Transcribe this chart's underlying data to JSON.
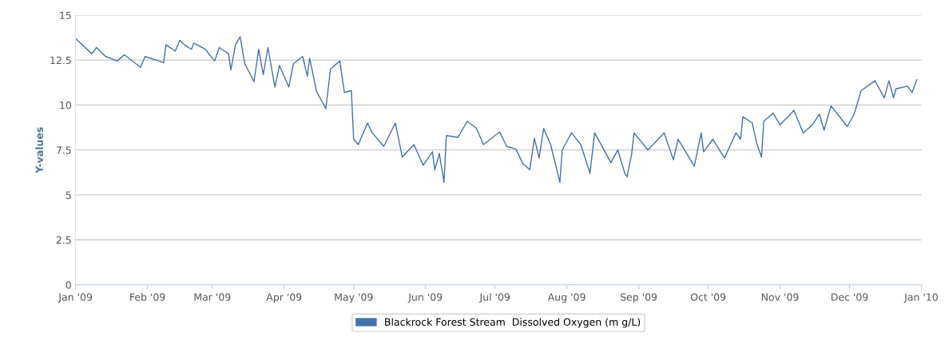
{
  "chart_data": {
    "type": "line",
    "ylabel": "Y-values",
    "xlim": [
      "2009-01-01",
      "2010-01-01"
    ],
    "xticks": [
      {
        "value": "2009-01-01",
        "label": "Jan '09"
      },
      {
        "value": "2009-02-01",
        "label": "Feb '09"
      },
      {
        "value": "2009-03-01",
        "label": "Mar '09"
      },
      {
        "value": "2009-04-01",
        "label": "Apr '09"
      },
      {
        "value": "2009-05-01",
        "label": "May '09"
      },
      {
        "value": "2009-06-01",
        "label": "Jun '09"
      },
      {
        "value": "2009-07-01",
        "label": "Jul '09"
      },
      {
        "value": "2009-08-01",
        "label": "Aug '09"
      },
      {
        "value": "2009-09-01",
        "label": "Sep '09"
      },
      {
        "value": "2009-10-01",
        "label": "Oct '09"
      },
      {
        "value": "2009-11-01",
        "label": "Nov '09"
      },
      {
        "value": "2009-12-01",
        "label": "Dec '09"
      },
      {
        "value": "2010-01-01",
        "label": "Jan '10"
      }
    ],
    "ylim": [
      0,
      15
    ],
    "yticks": [
      0,
      2.5,
      5,
      7.5,
      10,
      12.5,
      15
    ],
    "grid": "y",
    "legend": "bottom",
    "x": [
      "2009-01-01",
      "2009-01-08",
      "2009-01-10",
      "2009-01-14",
      "2009-01-19",
      "2009-01-22",
      "2009-01-29",
      "2009-01-31",
      "2009-02-06",
      "2009-02-08",
      "2009-02-09",
      "2009-02-13",
      "2009-02-15",
      "2009-02-17",
      "2009-02-20",
      "2009-02-21",
      "2009-02-26",
      "2009-03-02",
      "2009-03-04",
      "2009-03-08",
      "2009-03-09",
      "2009-03-11",
      "2009-03-13",
      "2009-03-15",
      "2009-03-19",
      "2009-03-21",
      "2009-03-23",
      "2009-03-25",
      "2009-03-28",
      "2009-03-30",
      "2009-04-03",
      "2009-04-05",
      "2009-04-09",
      "2009-04-11",
      "2009-04-12",
      "2009-04-15",
      "2009-04-19",
      "2009-04-21",
      "2009-04-25",
      "2009-04-27",
      "2009-04-30",
      "2009-05-01",
      "2009-05-03",
      "2009-05-07",
      "2009-05-09",
      "2009-05-14",
      "2009-05-19",
      "2009-05-22",
      "2009-05-27",
      "2009-05-31",
      "2009-06-04",
      "2009-06-05",
      "2009-06-07",
      "2009-06-09",
      "2009-06-10",
      "2009-06-15",
      "2009-06-19",
      "2009-06-23",
      "2009-06-26",
      "2009-07-03",
      "2009-07-06",
      "2009-07-10",
      "2009-07-13",
      "2009-07-16",
      "2009-07-18",
      "2009-07-20",
      "2009-07-22",
      "2009-07-25",
      "2009-07-29",
      "2009-07-30",
      "2009-08-03",
      "2009-08-07",
      "2009-08-11",
      "2009-08-13",
      "2009-08-20",
      "2009-08-23",
      "2009-08-26",
      "2009-08-27",
      "2009-08-29",
      "2009-08-30",
      "2009-09-05",
      "2009-09-12",
      "2009-09-16",
      "2009-09-18",
      "2009-09-25",
      "2009-09-28",
      "2009-09-29",
      "2009-10-03",
      "2009-10-08",
      "2009-10-13",
      "2009-10-15",
      "2009-10-16",
      "2009-10-20",
      "2009-10-22",
      "2009-10-24",
      "2009-10-25",
      "2009-10-29",
      "2009-11-01",
      "2009-11-07",
      "2009-11-11",
      "2009-11-15",
      "2009-11-18",
      "2009-11-20",
      "2009-11-23",
      "2009-11-27",
      "2009-11-30",
      "2009-12-03",
      "2009-12-06",
      "2009-12-12",
      "2009-12-16",
      "2009-12-18",
      "2009-12-20",
      "2009-12-21",
      "2009-12-26",
      "2009-12-28",
      "2009-12-30"
    ],
    "series": [
      {
        "name": "Blackrock Forest Stream  Dissolved Oxygen (m g/L)",
        "color": "#4572a7",
        "values": [
          13.7,
          12.85,
          13.2,
          12.7,
          12.45,
          12.8,
          12.1,
          12.7,
          12.45,
          12.35,
          13.35,
          13.0,
          13.6,
          13.35,
          13.1,
          13.45,
          13.1,
          12.45,
          13.2,
          12.85,
          11.95,
          13.35,
          13.8,
          12.3,
          11.3,
          13.1,
          11.7,
          13.2,
          11.0,
          12.2,
          11.0,
          12.3,
          12.7,
          11.6,
          12.6,
          10.75,
          9.8,
          12.0,
          12.45,
          10.7,
          10.8,
          8.1,
          7.8,
          9.0,
          8.45,
          7.7,
          9.0,
          7.1,
          7.8,
          6.65,
          7.4,
          6.4,
          7.3,
          5.7,
          8.3,
          8.2,
          9.1,
          8.7,
          7.8,
          8.5,
          7.7,
          7.55,
          6.75,
          6.4,
          8.15,
          7.05,
          8.7,
          7.8,
          5.7,
          7.5,
          8.45,
          7.8,
          6.2,
          8.45,
          6.8,
          7.5,
          6.2,
          6.0,
          7.3,
          8.45,
          7.5,
          8.45,
          6.95,
          8.1,
          6.6,
          8.45,
          7.4,
          8.1,
          7.05,
          8.45,
          8.1,
          9.35,
          9.0,
          7.85,
          7.1,
          9.1,
          9.55,
          8.9,
          9.7,
          8.45,
          8.9,
          9.5,
          8.6,
          9.95,
          9.3,
          8.8,
          9.5,
          10.8,
          11.35,
          10.4,
          11.35,
          10.4,
          10.9,
          11.05,
          10.7,
          11.4
        ]
      }
    ]
  }
}
